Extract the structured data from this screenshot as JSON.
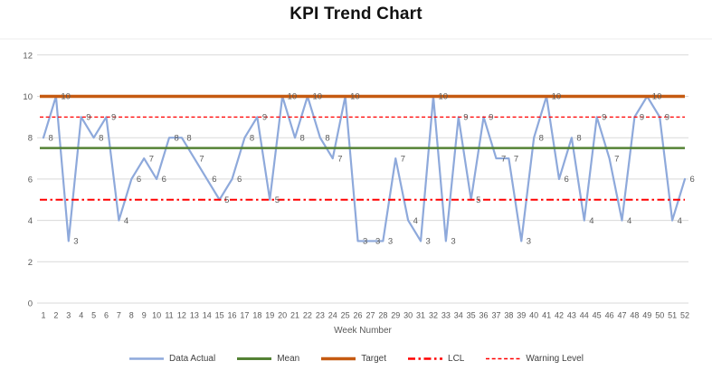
{
  "title": "KPI Trend Chart",
  "chart_data": {
    "type": "line",
    "title": "KPI Trend Chart",
    "xlabel": "Week Number",
    "ylabel": "",
    "ylim": [
      0,
      12
    ],
    "yticks": [
      0,
      2,
      4,
      6,
      8,
      10,
      12
    ],
    "grid": true,
    "legend_position": "bottom",
    "weeks": [
      1,
      2,
      3,
      4,
      5,
      6,
      7,
      8,
      9,
      10,
      11,
      12,
      13,
      14,
      15,
      16,
      17,
      18,
      19,
      20,
      21,
      22,
      23,
      24,
      25,
      26,
      27,
      28,
      29,
      30,
      31,
      32,
      33,
      34,
      35,
      36,
      37,
      38,
      39,
      40,
      41,
      42,
      43,
      44,
      45,
      46,
      47,
      48,
      49,
      50,
      51,
      52
    ],
    "series": [
      {
        "name": "Data Actual",
        "kind": "data",
        "color": "#8EA9DB",
        "dash": "solid",
        "values": [
          8,
          10,
          3,
          9,
          8,
          9,
          4,
          6,
          7,
          6,
          8,
          8,
          7,
          6,
          5,
          6,
          8,
          9,
          5,
          10,
          8,
          10,
          8,
          7,
          10,
          3,
          3,
          3,
          7,
          4,
          3,
          10,
          3,
          9,
          5,
          9,
          7,
          7,
          3,
          8,
          10,
          6,
          8,
          4,
          9,
          7,
          4,
          9,
          10,
          9,
          4,
          6
        ],
        "data_labels": true
      },
      {
        "name": "Mean",
        "kind": "constant",
        "color": "#548235",
        "dash": "solid",
        "value": 7.5
      },
      {
        "name": "Target",
        "kind": "constant",
        "color": "#C55A11",
        "dash": "solid",
        "value": 10
      },
      {
        "name": "LCL",
        "kind": "constant",
        "color": "#FF0000",
        "dash": "dash-dot",
        "value": 5
      },
      {
        "name": "Warning Level",
        "kind": "constant",
        "color": "#FF0000",
        "dash": "dash",
        "value": 9
      }
    ],
    "colors": {
      "gridline": "#d9d9d9",
      "axis_text": "#595959",
      "data_label_text": "#595959",
      "title_text": "#121212",
      "top_border": "#ececec"
    }
  }
}
